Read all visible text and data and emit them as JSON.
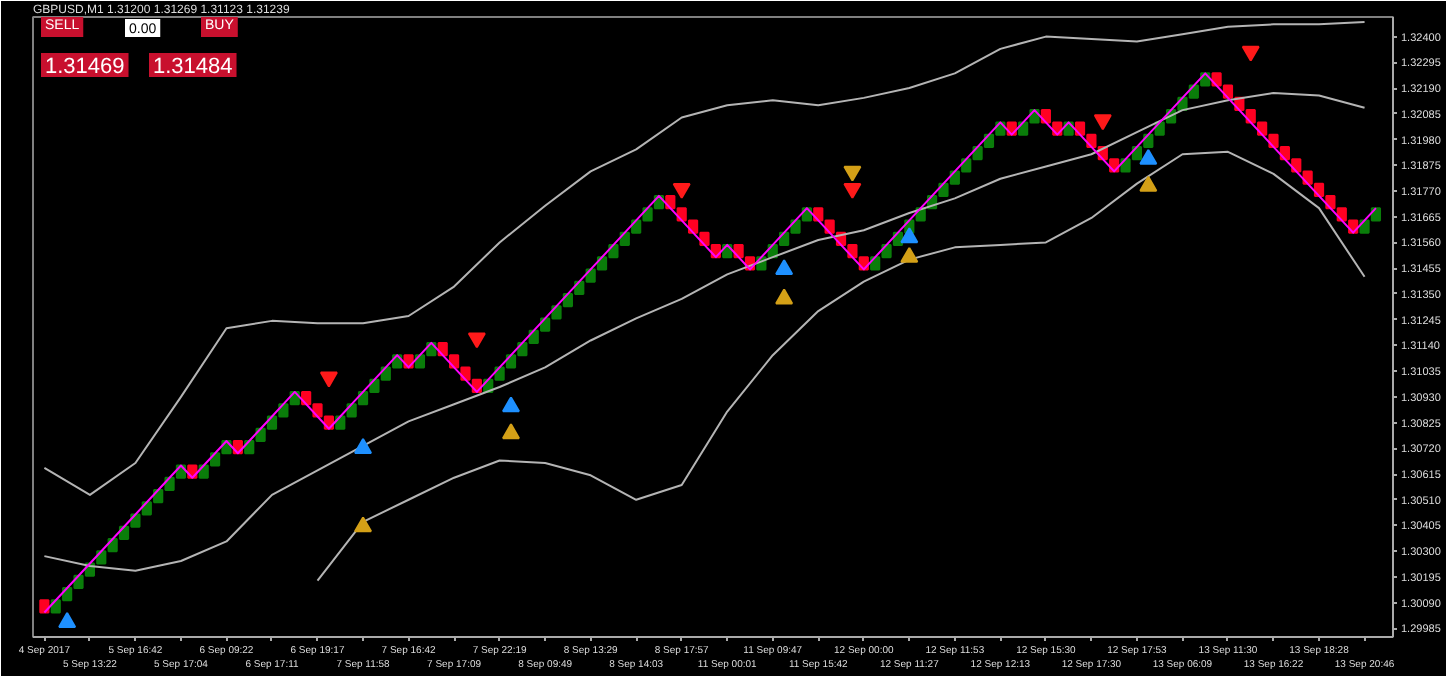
{
  "chart_data": {
    "type": "candlestick",
    "title": "GBPUSD,M1  1.31200 1.31269 1.31123 1.31239",
    "annotations": [
      "SELL",
      "0.00",
      "BUY",
      "1.31469",
      "1.31484"
    ],
    "categories": [
      "4 Sep 2017",
      null,
      null,
      null,
      "5 Sep 13:22",
      null,
      null,
      null,
      "5 Sep 16:42",
      null,
      null,
      null,
      "5 Sep 17:04",
      null,
      null,
      null,
      "6 Sep 09:22",
      null,
      null,
      null,
      "6 Sep 17:11",
      null,
      null,
      null,
      "6 Sep 19:17",
      null,
      null,
      null,
      "7 Sep 11:58",
      null,
      null,
      null,
      "7 Sep 16:42",
      null,
      null,
      null,
      "7 Sep 17:09",
      null,
      null,
      null,
      "7 Sep 22:19",
      null,
      null,
      null,
      "8 Sep 09:49",
      null,
      null,
      null,
      "8 Sep 13:29",
      null,
      null,
      null,
      "8 Sep 14:03",
      null,
      null,
      null,
      "8 Sep 17:57",
      null,
      null,
      null,
      "11 Sep 00:01",
      null,
      null,
      null,
      "11 Sep 09:47",
      null,
      null,
      null,
      "11 Sep 15:42",
      null,
      null,
      null,
      "12 Sep 00:00",
      null,
      null,
      null,
      "12 Sep 11:27",
      null,
      null,
      null,
      "12 Sep 11:53",
      null,
      null,
      null,
      "12 Sep 12:13",
      null,
      null,
      null,
      "12 Sep 15:30",
      null,
      null,
      null,
      "12 Sep 17:30",
      null,
      null,
      null,
      "12 Sep 17:53",
      null,
      null,
      null,
      "13 Sep 06:09",
      null,
      null,
      null,
      "13 Sep 11:30",
      null,
      null,
      null,
      "13 Sep 16:22",
      null,
      null,
      null,
      "13 Sep 18:28",
      null,
      null,
      null,
      "13 Sep 20:46",
      null
    ],
    "ohlc": [
      [
        1.301,
        1.301,
        1.3005,
        1.3005
      ],
      [
        1.3005,
        1.301,
        1.3005,
        1.301
      ],
      [
        1.301,
        1.3015,
        1.301,
        1.3015
      ],
      [
        1.3015,
        1.302,
        1.3015,
        1.302
      ],
      [
        1.302,
        1.3025,
        1.302,
        1.3025
      ],
      [
        1.3025,
        1.303,
        1.3025,
        1.303
      ],
      [
        1.303,
        1.3035,
        1.303,
        1.3035
      ],
      [
        1.3035,
        1.304,
        1.3035,
        1.304
      ],
      [
        1.304,
        1.3045,
        1.304,
        1.3045
      ],
      [
        1.3045,
        1.305,
        1.3045,
        1.305
      ],
      [
        1.305,
        1.3055,
        1.305,
        1.3055
      ],
      [
        1.3055,
        1.306,
        1.3055,
        1.306
      ],
      [
        1.306,
        1.3065,
        1.306,
        1.3065
      ],
      [
        1.3065,
        1.3065,
        1.306,
        1.306
      ],
      [
        1.306,
        1.3065,
        1.306,
        1.3065
      ],
      [
        1.3065,
        1.307,
        1.3065,
        1.307
      ],
      [
        1.307,
        1.3075,
        1.307,
        1.3075
      ],
      [
        1.3075,
        1.3075,
        1.307,
        1.307
      ],
      [
        1.307,
        1.3075,
        1.307,
        1.3075
      ],
      [
        1.3075,
        1.308,
        1.3075,
        1.308
      ],
      [
        1.308,
        1.3085,
        1.308,
        1.3085
      ],
      [
        1.3085,
        1.309,
        1.3085,
        1.309
      ],
      [
        1.309,
        1.3095,
        1.309,
        1.3095
      ],
      [
        1.3095,
        1.3095,
        1.309,
        1.309
      ],
      [
        1.309,
        1.309,
        1.3085,
        1.3085
      ],
      [
        1.3085,
        1.3085,
        1.308,
        1.308
      ],
      [
        1.308,
        1.3085,
        1.308,
        1.3085
      ],
      [
        1.3085,
        1.309,
        1.3085,
        1.309
      ],
      [
        1.309,
        1.3095,
        1.309,
        1.3095
      ],
      [
        1.3095,
        1.31,
        1.3095,
        1.31
      ],
      [
        1.31,
        1.3105,
        1.31,
        1.3105
      ],
      [
        1.3105,
        1.311,
        1.3105,
        1.311
      ],
      [
        1.311,
        1.311,
        1.3105,
        1.3105
      ],
      [
        1.3105,
        1.311,
        1.3105,
        1.311
      ],
      [
        1.311,
        1.3115,
        1.311,
        1.3115
      ],
      [
        1.3115,
        1.3115,
        1.311,
        1.311
      ],
      [
        1.311,
        1.311,
        1.3105,
        1.3105
      ],
      [
        1.3105,
        1.3105,
        1.31,
        1.31
      ],
      [
        1.31,
        1.31,
        1.3095,
        1.3095
      ],
      [
        1.3095,
        1.31,
        1.3095,
        1.31
      ],
      [
        1.31,
        1.3105,
        1.31,
        1.3105
      ],
      [
        1.3105,
        1.311,
        1.3105,
        1.311
      ],
      [
        1.311,
        1.3115,
        1.311,
        1.3115
      ],
      [
        1.3115,
        1.312,
        1.3115,
        1.312
      ],
      [
        1.312,
        1.3125,
        1.312,
        1.3125
      ],
      [
        1.3125,
        1.313,
        1.3125,
        1.313
      ],
      [
        1.313,
        1.3135,
        1.313,
        1.3135
      ],
      [
        1.3135,
        1.314,
        1.3135,
        1.314
      ],
      [
        1.314,
        1.3145,
        1.314,
        1.3145
      ],
      [
        1.3145,
        1.315,
        1.3145,
        1.315
      ],
      [
        1.315,
        1.3155,
        1.315,
        1.3155
      ],
      [
        1.3155,
        1.316,
        1.3155,
        1.316
      ],
      [
        1.316,
        1.3165,
        1.316,
        1.3165
      ],
      [
        1.3165,
        1.317,
        1.3165,
        1.317
      ],
      [
        1.317,
        1.3175,
        1.317,
        1.3175
      ],
      [
        1.3175,
        1.3175,
        1.317,
        1.317
      ],
      [
        1.317,
        1.317,
        1.3165,
        1.3165
      ],
      [
        1.3165,
        1.3165,
        1.316,
        1.316
      ],
      [
        1.316,
        1.316,
        1.3155,
        1.3155
      ],
      [
        1.3155,
        1.3155,
        1.315,
        1.315
      ],
      [
        1.315,
        1.3155,
        1.315,
        1.3155
      ],
      [
        1.3155,
        1.3155,
        1.315,
        1.315
      ],
      [
        1.315,
        1.315,
        1.3145,
        1.3145
      ],
      [
        1.3145,
        1.315,
        1.3145,
        1.315
      ],
      [
        1.315,
        1.3155,
        1.315,
        1.3155
      ],
      [
        1.3155,
        1.316,
        1.3155,
        1.316
      ],
      [
        1.316,
        1.3165,
        1.316,
        1.3165
      ],
      [
        1.3165,
        1.317,
        1.3165,
        1.317
      ],
      [
        1.317,
        1.317,
        1.3165,
        1.3165
      ],
      [
        1.3165,
        1.3165,
        1.316,
        1.316
      ],
      [
        1.316,
        1.316,
        1.3155,
        1.3155
      ],
      [
        1.3155,
        1.3155,
        1.315,
        1.315
      ],
      [
        1.315,
        1.315,
        1.3145,
        1.3145
      ],
      [
        1.3145,
        1.315,
        1.3145,
        1.315
      ],
      [
        1.315,
        1.3155,
        1.315,
        1.3155
      ],
      [
        1.3155,
        1.316,
        1.3155,
        1.316
      ],
      [
        1.316,
        1.3165,
        1.316,
        1.3165
      ],
      [
        1.3165,
        1.317,
        1.3165,
        1.317
      ],
      [
        1.317,
        1.3175,
        1.317,
        1.3175
      ],
      [
        1.3175,
        1.318,
        1.3175,
        1.318
      ],
      [
        1.318,
        1.3185,
        1.318,
        1.3185
      ],
      [
        1.3185,
        1.319,
        1.3185,
        1.319
      ],
      [
        1.319,
        1.3195,
        1.319,
        1.3195
      ],
      [
        1.3195,
        1.32,
        1.3195,
        1.32
      ],
      [
        1.32,
        1.3205,
        1.32,
        1.3205
      ],
      [
        1.3205,
        1.3205,
        1.32,
        1.32
      ],
      [
        1.32,
        1.3205,
        1.32,
        1.3205
      ],
      [
        1.3205,
        1.321,
        1.3205,
        1.321
      ],
      [
        1.321,
        1.321,
        1.3205,
        1.3205
      ],
      [
        1.3205,
        1.3205,
        1.32,
        1.32
      ],
      [
        1.32,
        1.3205,
        1.32,
        1.3205
      ],
      [
        1.3205,
        1.3205,
        1.32,
        1.32
      ],
      [
        1.32,
        1.32,
        1.3195,
        1.3195
      ],
      [
        1.3195,
        1.3195,
        1.319,
        1.319
      ],
      [
        1.319,
        1.319,
        1.3185,
        1.3185
      ],
      [
        1.3185,
        1.319,
        1.3185,
        1.319
      ],
      [
        1.319,
        1.3195,
        1.319,
        1.3195
      ],
      [
        1.3195,
        1.32,
        1.3195,
        1.32
      ],
      [
        1.32,
        1.3205,
        1.32,
        1.3205
      ],
      [
        1.3205,
        1.321,
        1.3205,
        1.321
      ],
      [
        1.321,
        1.3215,
        1.321,
        1.3215
      ],
      [
        1.3215,
        1.322,
        1.3215,
        1.322
      ],
      [
        1.322,
        1.3225,
        1.322,
        1.3225
      ],
      [
        1.3225,
        1.3225,
        1.322,
        1.322
      ],
      [
        1.322,
        1.322,
        1.3215,
        1.3215
      ],
      [
        1.3215,
        1.3215,
        1.321,
        1.321
      ],
      [
        1.321,
        1.321,
        1.3205,
        1.3205
      ],
      [
        1.3205,
        1.3205,
        1.32,
        1.32
      ],
      [
        1.32,
        1.32,
        1.3195,
        1.3195
      ],
      [
        1.3195,
        1.3195,
        1.319,
        1.319
      ],
      [
        1.319,
        1.319,
        1.3185,
        1.3185
      ],
      [
        1.3185,
        1.3185,
        1.318,
        1.318
      ],
      [
        1.318,
        1.318,
        1.3175,
        1.3175
      ],
      [
        1.3175,
        1.3175,
        1.317,
        1.317
      ],
      [
        1.317,
        1.317,
        1.3165,
        1.3165
      ],
      [
        1.3165,
        1.3165,
        1.316,
        1.316
      ],
      [
        1.316,
        1.3165,
        1.316,
        1.3165
      ],
      [
        1.3165,
        1.317,
        1.3165,
        1.317
      ]
    ],
    "colors": [
      "#ff0022",
      "#0a7d0a",
      "#0a7d0a",
      "#0a7d0a",
      "#0a7d0a",
      "#0a7d0a",
      "#0a7d0a",
      "#0a7d0a",
      "#0a7d0a",
      "#0a7d0a",
      "#0a7d0a",
      "#0a7d0a",
      "#0a7d0a",
      "#ff0022",
      "#0a7d0a",
      "#0a7d0a",
      "#0a7d0a",
      "#ff0022",
      "#0a7d0a",
      "#0a7d0a",
      "#0a7d0a",
      "#0a7d0a",
      "#0a7d0a",
      "#ff0022",
      "#ff0022",
      "#ff0022",
      "#0a7d0a",
      "#0a7d0a",
      "#0a7d0a",
      "#0a7d0a",
      "#0a7d0a",
      "#0a7d0a",
      "#ff0022",
      "#0a7d0a",
      "#0a7d0a",
      "#ff0022",
      "#ff0022",
      "#ff0022",
      "#ff0022",
      "#0a7d0a",
      "#0a7d0a",
      "#0a7d0a",
      "#0a7d0a",
      "#0a7d0a",
      "#0a7d0a",
      "#0a7d0a",
      "#0a7d0a",
      "#0a7d0a",
      "#0a7d0a",
      "#0a7d0a",
      "#0a7d0a",
      "#0a7d0a",
      "#0a7d0a",
      "#0a7d0a",
      "#0a7d0a",
      "#ff0022",
      "#ff0022",
      "#ff0022",
      "#ff0022",
      "#ff0022",
      "#0a7d0a",
      "#ff0022",
      "#ff0022",
      "#0a7d0a",
      "#0a7d0a",
      "#0a7d0a",
      "#0a7d0a",
      "#0a7d0a",
      "#ff0022",
      "#ff0022",
      "#ff0022",
      "#ff0022",
      "#ff0022",
      "#0a7d0a",
      "#0a7d0a",
      "#0a7d0a",
      "#0a7d0a",
      "#0a7d0a",
      "#0a7d0a",
      "#0a7d0a",
      "#0a7d0a",
      "#0a7d0a",
      "#0a7d0a",
      "#0a7d0a",
      "#0a7d0a",
      "#ff0022",
      "#0a7d0a",
      "#0a7d0a",
      "#ff0022",
      "#ff0022",
      "#0a7d0a",
      "#ff0022",
      "#ff0022",
      "#ff0022",
      "#ff0022",
      "#0a7d0a",
      "#0a7d0a",
      "#0a7d0a",
      "#0a7d0a",
      "#0a7d0a",
      "#0a7d0a",
      "#0a7d0a",
      "#0a7d0a",
      "#ff0022",
      "#ff0022",
      "#ff0022",
      "#ff0022",
      "#ff0022",
      "#ff0022",
      "#ff0022",
      "#ff0022",
      "#ff0022",
      "#ff0022",
      "#ff0022",
      "#ff0022",
      "#ff0022",
      "#0a7d0a",
      "#0a7d0a"
    ],
    "series": [
      {
        "type": "line",
        "color": "#b4b4b4",
        "x": [
          "4 Sep 2017",
          "5 Sep 13:22",
          "5 Sep 16:42",
          "5 Sep 17:04",
          "6 Sep 09:22",
          "6 Sep 17:11",
          "6 Sep 19:17",
          "7 Sep 11:58",
          "7 Sep 16:42",
          "7 Sep 17:09",
          "7 Sep 22:19",
          "8 Sep 09:49",
          "8 Sep 13:29",
          "8 Sep 14:03",
          "8 Sep 17:57",
          "11 Sep 00:01",
          "11 Sep 09:47",
          "11 Sep 15:42",
          "12 Sep 00:00",
          "12 Sep 11:27",
          "12 Sep 11:53",
          "12 Sep 12:13",
          "12 Sep 15:30",
          "12 Sep 17:30",
          "12 Sep 17:53",
          "13 Sep 06:09",
          "13 Sep 11:30",
          "13 Sep 16:22",
          "13 Sep 18:28",
          "13 Sep 20:46"
        ],
        "values": [
          1.3064,
          1.3053,
          1.3066,
          1.3093,
          1.3121,
          1.3124,
          1.3123,
          1.3123,
          1.3126,
          1.3138,
          1.3156,
          1.3171,
          1.3185,
          1.3194,
          1.3207,
          1.3212,
          1.3214,
          1.3212,
          1.3215,
          1.3219,
          1.3225,
          1.3235,
          1.324,
          1.3239,
          1.3238,
          1.3241,
          1.3244,
          1.3245,
          1.3245,
          1.3246
        ]
      },
      {
        "type": "line",
        "color": "#b4b4b4",
        "x": [
          "4 Sep 2017",
          "5 Sep 13:22",
          "5 Sep 16:42",
          "5 Sep 17:04",
          "6 Sep 09:22",
          "6 Sep 17:11",
          "6 Sep 19:17",
          "7 Sep 11:58",
          "7 Sep 16:42",
          "7 Sep 17:09",
          "7 Sep 22:19",
          "8 Sep 09:49",
          "8 Sep 13:29",
          "8 Sep 14:03",
          "8 Sep 17:57",
          "11 Sep 00:01",
          "11 Sep 09:47",
          "11 Sep 15:42",
          "12 Sep 00:00",
          "12 Sep 11:27",
          "12 Sep 11:53",
          "12 Sep 12:13",
          "12 Sep 15:30",
          "12 Sep 17:30",
          "12 Sep 17:53",
          "13 Sep 06:09",
          "13 Sep 11:30",
          "13 Sep 16:22",
          "13 Sep 18:28",
          "13 Sep 20:46"
        ],
        "values": [
          1.3028,
          1.3024,
          1.3022,
          1.3026,
          1.3034,
          1.3053,
          1.3063,
          1.3073,
          1.3083,
          1.309,
          1.3097,
          1.3105,
          1.3116,
          1.3125,
          1.3133,
          1.3143,
          1.315,
          1.3157,
          1.3161,
          1.3168,
          1.3174,
          1.3182,
          1.3187,
          1.3192,
          1.3201,
          1.321,
          1.3214,
          1.3217,
          1.3216,
          1.3211
        ]
      },
      {
        "type": "line",
        "color": "#b4b4b4",
        "x": [
          "6 Sep 19:17",
          "7 Sep 11:58",
          "7 Sep 16:42",
          "7 Sep 17:09",
          "7 Sep 22:19",
          "8 Sep 09:49",
          "8 Sep 13:29",
          "8 Sep 14:03",
          "8 Sep 17:57",
          "11 Sep 00:01",
          "11 Sep 09:47",
          "11 Sep 15:42",
          "12 Sep 00:00",
          "12 Sep 11:27",
          "12 Sep 11:53",
          "12 Sep 12:13",
          "12 Sep 15:30",
          "12 Sep 17:30",
          "12 Sep 17:53",
          "13 Sep 06:09",
          "13 Sep 11:30",
          "13 Sep 16:22",
          "13 Sep 18:28",
          "13 Sep 20:46"
        ],
        "values": [
          1.3018,
          1.3042,
          1.3051,
          1.306,
          1.3067,
          1.3066,
          1.3061,
          1.3051,
          1.3057,
          1.3087,
          1.311,
          1.3128,
          1.314,
          1.3149,
          1.3154,
          1.3155,
          1.3156,
          1.3166,
          1.318,
          1.3192,
          1.3193,
          1.3184,
          1.317,
          1.3142
        ]
      },
      {
        "type": "line",
        "color": "#ff00ff",
        "values": [
          1.3005,
          1.301,
          1.3015,
          1.302,
          1.3025,
          1.303,
          1.3035,
          1.304,
          1.3045,
          1.305,
          1.3055,
          1.306,
          1.3065,
          1.306,
          1.3065,
          1.307,
          1.3075,
          1.307,
          1.3075,
          1.308,
          1.3085,
          1.309,
          1.3095,
          1.309,
          1.3085,
          1.308,
          1.3085,
          1.309,
          1.3095,
          1.31,
          1.3105,
          1.311,
          1.3105,
          1.311,
          1.3115,
          1.311,
          1.3105,
          1.31,
          1.3095,
          1.31,
          1.3105,
          1.311,
          1.3115,
          1.312,
          1.3125,
          1.313,
          1.3135,
          1.314,
          1.3145,
          1.315,
          1.3155,
          1.316,
          1.3165,
          1.317,
          1.3175,
          1.317,
          1.3165,
          1.316,
          1.3155,
          1.315,
          1.3155,
          1.315,
          1.3145,
          1.315,
          1.3155,
          1.316,
          1.3165,
          1.317,
          1.3165,
          1.316,
          1.3155,
          1.315,
          1.3145,
          1.315,
          1.3155,
          1.316,
          1.3165,
          1.317,
          1.3175,
          1.318,
          1.3185,
          1.319,
          1.3195,
          1.32,
          1.3205,
          1.32,
          1.3205,
          1.321,
          1.3205,
          1.32,
          1.3205,
          1.32,
          1.3195,
          1.319,
          1.3185,
          1.319,
          1.3195,
          1.32,
          1.3205,
          1.321,
          1.3215,
          1.322,
          1.3225,
          1.322,
          1.3215,
          1.321,
          1.3205,
          1.32,
          1.3195,
          1.319,
          1.3185,
          1.318,
          1.3175,
          1.317,
          1.3165,
          1.316,
          1.3165,
          1.317
        ]
      },
      {
        "type": "scatter",
        "color": "#ff1a1a",
        "values": [
          null,
          null,
          null,
          null,
          null,
          null,
          null,
          null,
          null,
          null,
          null,
          null,
          null,
          null,
          null,
          null,
          null,
          null,
          null,
          null,
          null,
          null,
          null,
          null,
          null,
          1.3101,
          null,
          null,
          null,
          null,
          null,
          null,
          null,
          null,
          null,
          null,
          null,
          null,
          1.3117,
          null,
          null,
          null,
          null,
          null,
          null,
          null,
          null,
          null,
          null,
          null,
          null,
          null,
          null,
          null,
          null,
          null,
          1.3178,
          null,
          null,
          null,
          null,
          null,
          null,
          null,
          null,
          null,
          null,
          null,
          null,
          null,
          null,
          1.3178,
          null,
          null,
          null,
          null,
          null,
          null,
          null,
          null,
          null,
          null,
          null,
          null,
          null,
          null,
          null,
          null,
          null,
          null,
          null,
          null,
          null,
          1.3206,
          null,
          null,
          null,
          null,
          null,
          null,
          null,
          null,
          null,
          null,
          null,
          null,
          1.3234,
          null,
          null,
          null,
          null,
          null,
          null,
          null,
          null,
          null,
          null,
          null
        ]
      },
      {
        "type": "scatter",
        "marker": "triangle",
        "color": "#1e90ff",
        "values": [
          null,
          null,
          1.3001,
          null,
          null,
          null,
          null,
          null,
          null,
          null,
          null,
          null,
          null,
          null,
          null,
          null,
          null,
          null,
          null,
          null,
          null,
          null,
          null,
          null,
          null,
          null,
          null,
          null,
          1.3072,
          null,
          null,
          null,
          null,
          null,
          null,
          null,
          null,
          null,
          null,
          null,
          null,
          1.3089,
          null,
          null,
          null,
          null,
          null,
          null,
          null,
          null,
          null,
          null,
          null,
          null,
          null,
          null,
          null,
          null,
          null,
          null,
          null,
          null,
          null,
          null,
          null,
          1.3145,
          null,
          null,
          null,
          null,
          null,
          null,
          null,
          null,
          null,
          null,
          1.3158,
          null,
          null,
          null,
          null,
          null,
          null,
          null,
          null,
          null,
          null,
          null,
          null,
          null,
          null,
          null,
          null,
          null,
          null,
          null,
          null,
          1.319,
          null,
          null,
          null,
          null,
          null,
          null,
          null,
          null,
          null,
          null,
          null,
          null,
          null,
          null,
          null,
          null,
          null,
          null,
          null,
          null
        ]
      },
      {
        "type": "scatter",
        "marker": "triangle",
        "color": "#d4a017",
        "values": [
          null,
          null,
          null,
          null,
          null,
          null,
          null,
          null,
          null,
          null,
          null,
          null,
          null,
          null,
          null,
          null,
          null,
          null,
          null,
          null,
          null,
          null,
          null,
          null,
          null,
          null,
          null,
          null,
          1.304,
          null,
          null,
          null,
          null,
          null,
          null,
          null,
          null,
          null,
          null,
          null,
          null,
          1.3078,
          null,
          null,
          null,
          null,
          null,
          null,
          null,
          null,
          null,
          null,
          null,
          null,
          null,
          null,
          null,
          null,
          null,
          null,
          null,
          null,
          null,
          null,
          null,
          1.3133,
          null,
          null,
          null,
          null,
          null,
          null,
          null,
          null,
          null,
          null,
          1.315,
          null,
          null,
          null,
          null,
          null,
          null,
          null,
          null,
          null,
          null,
          null,
          null,
          null,
          null,
          null,
          null,
          null,
          null,
          null,
          null,
          1.3179,
          null,
          null,
          null,
          null,
          null,
          null,
          null,
          null,
          null,
          null,
          null,
          null,
          null,
          null,
          null,
          null,
          null,
          null,
          null,
          null
        ]
      },
      {
        "type": "scatter",
        "color": "#d4a017",
        "values": [
          null,
          null,
          null,
          null,
          null,
          null,
          null,
          null,
          null,
          null,
          null,
          null,
          null,
          null,
          null,
          null,
          null,
          null,
          null,
          null,
          null,
          null,
          null,
          null,
          null,
          null,
          null,
          null,
          null,
          null,
          null,
          null,
          null,
          null,
          null,
          null,
          null,
          null,
          null,
          null,
          null,
          null,
          null,
          null,
          null,
          null,
          null,
          null,
          null,
          null,
          null,
          null,
          null,
          null,
          null,
          null,
          null,
          null,
          null,
          null,
          null,
          null,
          null,
          null,
          null,
          null,
          null,
          null,
          null,
          null,
          null,
          1.3185,
          null,
          null,
          null,
          null,
          null,
          null,
          null,
          null,
          null,
          null,
          null,
          null,
          null,
          null,
          null,
          null,
          null,
          null,
          null,
          null,
          null,
          null,
          null,
          null,
          null,
          null,
          null,
          null,
          null,
          null,
          null,
          null,
          null,
          null,
          null,
          null,
          null,
          null,
          null,
          null,
          null,
          null,
          null,
          null,
          null,
          null
        ]
      }
    ],
    "ylim": [
      1.2995,
      1.3248
    ],
    "yticks": [
      {
        "value": 1.29985,
        "label": "1.29985"
      },
      {
        "value": 1.3009,
        "label": "1.30090"
      },
      {
        "value": 1.30195,
        "label": "1.30195"
      },
      {
        "value": 1.303,
        "label": "1.30300"
      },
      {
        "value": 1.30405,
        "label": "1.30405"
      },
      {
        "value": 1.3051,
        "label": "1.30510"
      },
      {
        "value": 1.30615,
        "label": "1.30615"
      },
      {
        "value": 1.3072,
        "label": "1.30720"
      },
      {
        "value": 1.30825,
        "label": "1.30825"
      },
      {
        "value": 1.3093,
        "label": "1.30930"
      },
      {
        "value": 1.31035,
        "label": "1.31035"
      },
      {
        "value": 1.3114,
        "label": "1.31140"
      },
      {
        "value": 1.31245,
        "label": "1.31245"
      },
      {
        "value": 1.3135,
        "label": "1.31350"
      },
      {
        "value": 1.31455,
        "label": "1.31455"
      },
      {
        "value": 1.3156,
        "label": "1.31560"
      },
      {
        "value": 1.31665,
        "label": "1.31665"
      },
      {
        "value": 1.3177,
        "label": "1.31770"
      },
      {
        "value": 1.31875,
        "label": "1.31875"
      },
      {
        "value": 1.3198,
        "label": "1.31980"
      },
      {
        "value": 1.32085,
        "label": "1.32085"
      },
      {
        "value": 1.3219,
        "label": "1.32190"
      },
      {
        "value": 1.32295,
        "label": "1.32295"
      },
      {
        "value": 1.324,
        "label": "1.32400"
      }
    ]
  }
}
